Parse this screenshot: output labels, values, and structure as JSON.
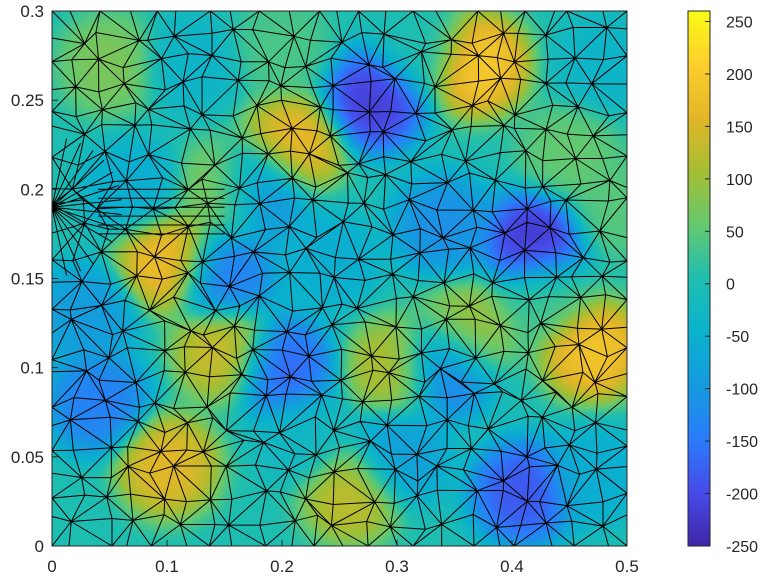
{
  "chart_data": {
    "type": "heatmap",
    "title": "",
    "xlabel": "",
    "ylabel": "",
    "xlim": [
      0,
      0.5
    ],
    "ylim": [
      0,
      0.3
    ],
    "x_ticks": [
      "0",
      "0.1",
      "0.2",
      "0.3",
      "0.4",
      "0.5"
    ],
    "y_ticks": [
      "0",
      "0.05",
      "0.1",
      "0.15",
      "0.2",
      "0.25",
      "0.3"
    ],
    "colorbar": {
      "range": [
        -250,
        260
      ],
      "ticks": [
        "-250",
        "-200",
        "-150",
        "-100",
        "-50",
        "0",
        "50",
        "100",
        "150",
        "200",
        "250"
      ],
      "colormap": "parula"
    },
    "mesh": "triangular finite element mesh overlay",
    "field_values": [
      {
        "x": 0.47,
        "y": 0.11,
        "v": 200
      },
      {
        "x": 0.37,
        "y": 0.27,
        "v": 210
      },
      {
        "x": 0.21,
        "y": 0.225,
        "v": 180
      },
      {
        "x": 0.1,
        "y": 0.16,
        "v": 190
      },
      {
        "x": 0.1,
        "y": 0.045,
        "v": 170
      },
      {
        "x": 0.15,
        "y": 0.11,
        "v": 150
      },
      {
        "x": 0.26,
        "y": 0.03,
        "v": 140
      },
      {
        "x": 0.3,
        "y": 0.1,
        "v": 130
      },
      {
        "x": 0.36,
        "y": 0.12,
        "v": 110
      },
      {
        "x": 0.43,
        "y": 0.14,
        "v": 30
      },
      {
        "x": 0.45,
        "y": 0.22,
        "v": 60
      },
      {
        "x": 0.05,
        "y": 0.27,
        "v": 80
      },
      {
        "x": 0.15,
        "y": 0.2,
        "v": 90
      },
      {
        "x": 0.28,
        "y": 0.25,
        "v": -230
      },
      {
        "x": 0.42,
        "y": 0.17,
        "v": -240
      },
      {
        "x": 0.41,
        "y": 0.03,
        "v": -200
      },
      {
        "x": 0.34,
        "y": 0.1,
        "v": -160
      },
      {
        "x": 0.2,
        "y": 0.1,
        "v": -180
      },
      {
        "x": 0.15,
        "y": 0.15,
        "v": -150
      },
      {
        "x": 0.04,
        "y": 0.08,
        "v": -150
      },
      {
        "x": 0.18,
        "y": 0.2,
        "v": -130
      },
      {
        "x": 0.34,
        "y": 0.18,
        "v": -120
      },
      {
        "x": 0.24,
        "y": 0.16,
        "v": -60
      },
      {
        "x": 0.03,
        "y": 0.13,
        "v": -100
      },
      {
        "x": 0.12,
        "y": 0.27,
        "v": -40
      },
      {
        "x": 0.48,
        "y": 0.27,
        "v": -40
      },
      {
        "x": 0.47,
        "y": 0.04,
        "v": -60
      },
      {
        "x": 0.3,
        "y": 0.05,
        "v": -90
      },
      {
        "x": 0.07,
        "y": 0.2,
        "v": -60
      },
      {
        "x": 0.22,
        "y": 0.06,
        "v": -30
      },
      {
        "x": 0.32,
        "y": 0.28,
        "v": 0
      },
      {
        "x": 0.2,
        "y": 0.28,
        "v": 40
      },
      {
        "x": 0.01,
        "y": 0.01,
        "v": 0
      },
      {
        "x": 0.49,
        "y": 0.19,
        "v": 50
      }
    ]
  }
}
